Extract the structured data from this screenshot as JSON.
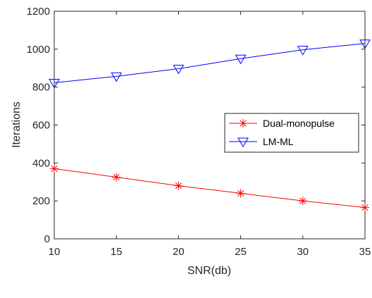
{
  "chart_data": {
    "type": "line",
    "title": "",
    "xlabel": "SNR(db)",
    "ylabel": "Iterations",
    "x": [
      10,
      15,
      20,
      25,
      30,
      35
    ],
    "xlim": [
      10,
      35
    ],
    "ylim": [
      0,
      1200
    ],
    "x_ticks": [
      "10",
      "15",
      "20",
      "25",
      "30",
      "35"
    ],
    "y_ticks": [
      "0",
      "200",
      "400",
      "600",
      "800",
      "1000",
      "1200"
    ],
    "grid": false,
    "legend_position": "right",
    "series": [
      {
        "name": "Dual-monopulse",
        "color": "#ff0000",
        "marker": "asterisk",
        "values": [
          370,
          325,
          280,
          240,
          200,
          165
        ]
      },
      {
        "name": "LM-ML",
        "color": "#0000ff",
        "marker": "triangle-down",
        "values": [
          823,
          857,
          897,
          950,
          997,
          1030
        ]
      }
    ]
  }
}
